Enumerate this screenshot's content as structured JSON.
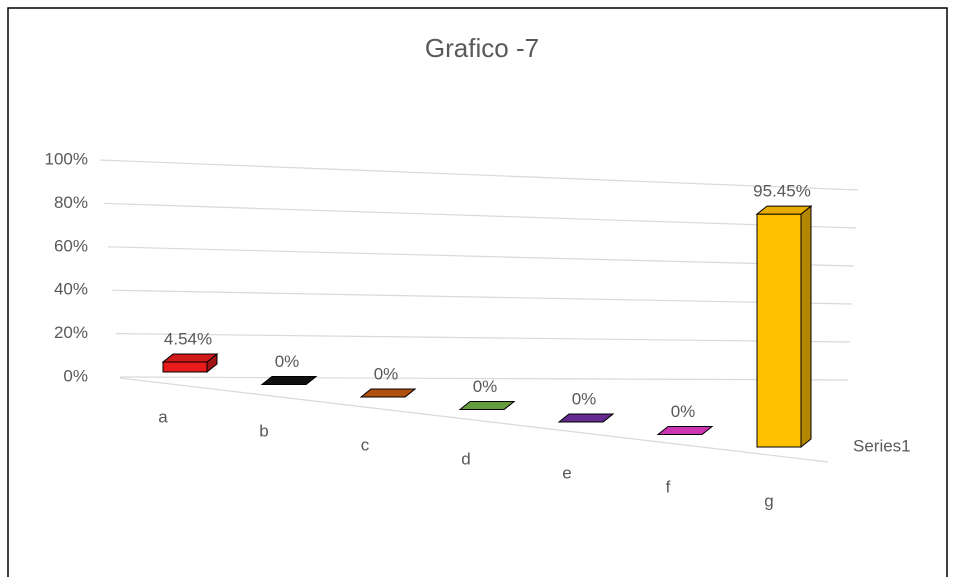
{
  "chart_data": {
    "type": "bar3d",
    "title": "Grafico -7",
    "categories": [
      "a",
      "b",
      "c",
      "d",
      "e",
      "f",
      "g"
    ],
    "series": [
      {
        "name": "Series1",
        "values": [
          4.54,
          0,
          0,
          0,
          0,
          0,
          95.45
        ],
        "value_labels": [
          "4.54%",
          "0%",
          "0%",
          "0%",
          "0%",
          "0%",
          "95.45%"
        ],
        "colors": [
          "#e81c1c",
          "#111111",
          "#c55a11",
          "#70ad47",
          "#7030a0",
          "#e23bc5",
          "#ffc000"
        ]
      }
    ],
    "ylim": [
      0,
      100
    ],
    "yticks": [
      {
        "value": 0,
        "label": "0%"
      },
      {
        "value": 20,
        "label": "20%"
      },
      {
        "value": 40,
        "label": "40%"
      },
      {
        "value": 60,
        "label": "60%"
      },
      {
        "value": 80,
        "label": "80%"
      },
      {
        "value": 100,
        "label": "100%"
      }
    ],
    "grid": true
  }
}
